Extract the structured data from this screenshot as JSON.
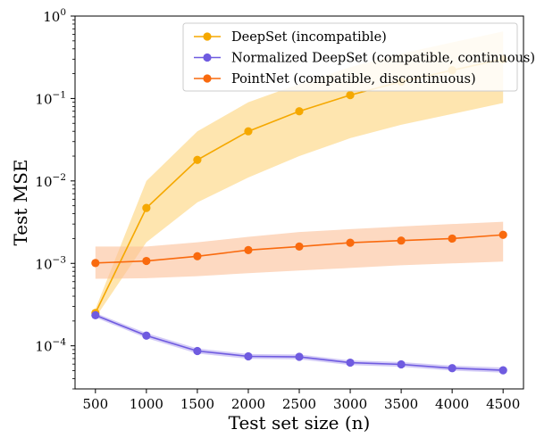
{
  "chart_data": {
    "type": "line",
    "xlabel": "Test set size (n)",
    "ylabel": "Test MSE",
    "y_scale": "log",
    "xlim": [
      300,
      4700
    ],
    "ylim": [
      3e-05,
      1
    ],
    "x_ticks": [
      500,
      1000,
      1500,
      2000,
      2500,
      3000,
      3500,
      4000,
      4500
    ],
    "x_tick_labels": [
      "500",
      "1000",
      "1500",
      "2000",
      "2500",
      "3000",
      "3500",
      "4000",
      "4500"
    ],
    "y_ticks": [
      0.0001,
      0.001,
      0.01,
      0.1,
      1
    ],
    "y_tick_labels": [
      {
        "base": "10",
        "exp": "−4"
      },
      {
        "base": "10",
        "exp": "−3"
      },
      {
        "base": "10",
        "exp": "−2"
      },
      {
        "base": "10",
        "exp": "−1"
      },
      {
        "base": "10",
        "exp": "0"
      }
    ],
    "legend_position": "top-right",
    "grid": false,
    "x": [
      500,
      1000,
      1500,
      2000,
      2500,
      3000,
      3500,
      4000,
      4500
    ],
    "series": [
      {
        "name": "DeepSet (incompatible)",
        "color": "#f5a800",
        "band_color": "#fdd37a",
        "values": [
          0.00025,
          0.0047,
          0.018,
          0.04,
          0.07,
          0.11,
          0.16,
          0.22,
          0.3
        ],
        "lower": [
          0.00022,
          0.0018,
          0.0055,
          0.011,
          0.02,
          0.033,
          0.048,
          0.065,
          0.088
        ],
        "upper": [
          0.00028,
          0.01,
          0.04,
          0.09,
          0.15,
          0.24,
          0.35,
          0.48,
          0.65
        ]
      },
      {
        "name": "Normalized DeepSet (compatible, continuous)",
        "color": "#6f5be0",
        "band_color": "#b7aaf0",
        "values": [
          0.000235,
          0.000133,
          8.65e-05,
          7.45e-05,
          7.35e-05,
          6.25e-05,
          5.95e-05,
          5.35e-05,
          5.05e-05
        ],
        "lower": [
          0.00022,
          0.000124,
          8.05e-05,
          6.95e-05,
          6.85e-05,
          5.85e-05,
          5.55e-05,
          5e-05,
          4.72e-05
        ],
        "upper": [
          0.00025,
          0.000143,
          9.3e-05,
          7.95e-05,
          7.85e-05,
          6.65e-05,
          6.35e-05,
          5.75e-05,
          5.45e-05
        ]
      },
      {
        "name": "PointNet (compatible, discontinuous)",
        "color": "#f96a0e",
        "band_color": "#fcbf98",
        "values": [
          0.00101,
          0.00107,
          0.00122,
          0.00145,
          0.0016,
          0.00178,
          0.00189,
          0.002,
          0.00222
        ],
        "lower": [
          0.00065,
          0.00066,
          0.0007,
          0.00076,
          0.00082,
          0.00088,
          0.00095,
          0.001,
          0.00105
        ],
        "upper": [
          0.0016,
          0.0016,
          0.0018,
          0.0021,
          0.0024,
          0.0026,
          0.0028,
          0.003,
          0.0032
        ]
      }
    ]
  }
}
